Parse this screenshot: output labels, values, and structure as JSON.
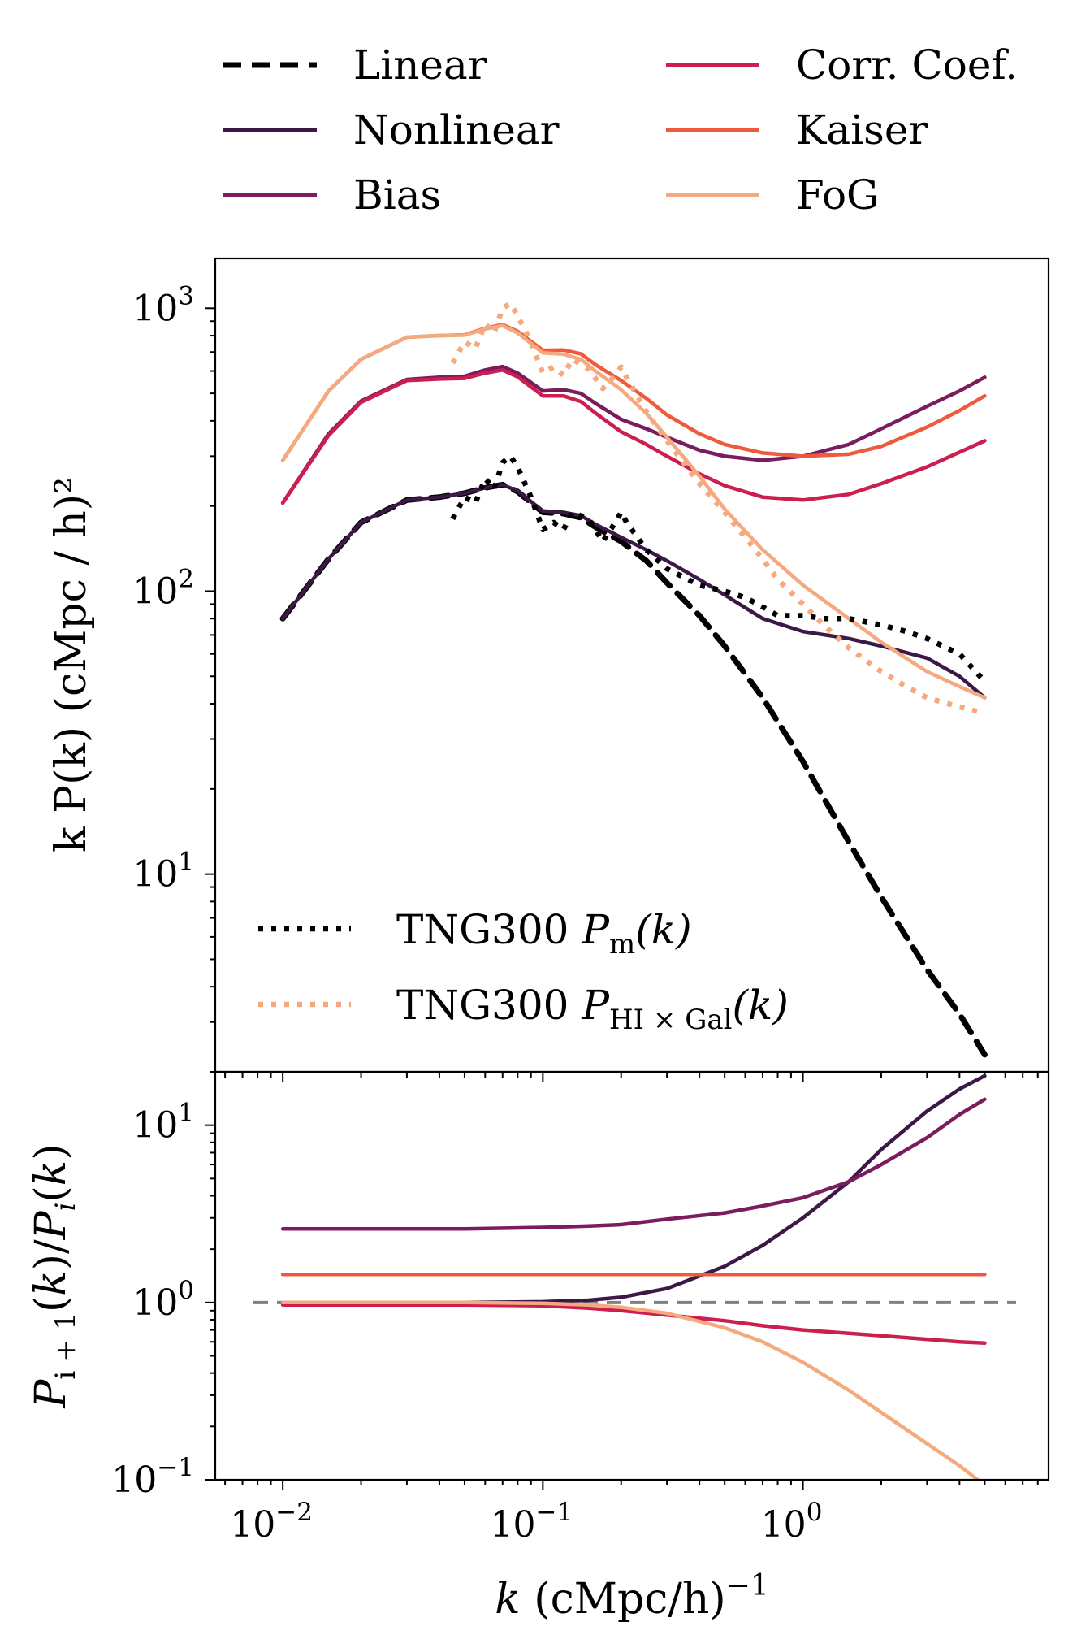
{
  "chart_data": [
    {
      "type": "line",
      "panel": "top",
      "xscale": "log",
      "yscale": "log",
      "xlim": [
        0.0055,
        8.8
      ],
      "ylim": [
        2.0,
        1500
      ],
      "ylabel": "k P(k) (cMpc / h)²",
      "ytick_labels": [
        {
          "base": "10",
          "exp": "1",
          "value": 10
        },
        {
          "base": "10",
          "exp": "2",
          "value": 100
        },
        {
          "base": "10",
          "exp": "3",
          "value": 1000
        }
      ],
      "legend_top": {
        "placement": "above-figure",
        "entries": [
          {
            "key": "linear",
            "label": "Linear"
          },
          {
            "key": "nonlinear",
            "label": "Nonlinear"
          },
          {
            "key": "bias",
            "label": "Bias"
          },
          {
            "key": "corr",
            "label": "Corr. Coef."
          },
          {
            "key": "kaiser",
            "label": "Kaiser"
          },
          {
            "key": "fog",
            "label": "FoG"
          }
        ]
      },
      "legend_sim": {
        "placement": "lower-left",
        "entries": [
          {
            "key": "tng_m",
            "label_main": "TNG300 ",
            "label_sym": "P",
            "label_sub": "m",
            "label_tail": "(k)"
          },
          {
            "key": "tng_hi",
            "label_main": "TNG300 ",
            "label_sym": "P",
            "label_sub": "HI × Gal",
            "label_tail": "(k)"
          }
        ]
      },
      "series": [
        {
          "key": "linear",
          "name": "Linear",
          "color": "#000000",
          "style": "dashed",
          "x": [
            0.01,
            0.015,
            0.02,
            0.03,
            0.04,
            0.05,
            0.06,
            0.07,
            0.08,
            0.1,
            0.12,
            0.14,
            0.16,
            0.2,
            0.25,
            0.3,
            0.4,
            0.5,
            0.7,
            1.0,
            1.5,
            2.0,
            3.0,
            4.0,
            5.0
          ],
          "y": [
            80,
            130,
            175,
            210,
            215,
            222,
            232,
            238,
            225,
            190,
            188,
            182,
            168,
            150,
            128,
            107,
            82,
            64,
            42,
            25,
            13,
            8.3,
            4.6,
            3.2,
            2.3
          ]
        },
        {
          "key": "nonlinear",
          "name": "Nonlinear",
          "color": "#3b1846",
          "style": "solid",
          "x": [
            0.01,
            0.015,
            0.02,
            0.03,
            0.04,
            0.05,
            0.06,
            0.07,
            0.08,
            0.1,
            0.12,
            0.14,
            0.16,
            0.2,
            0.25,
            0.3,
            0.4,
            0.5,
            0.7,
            1.0,
            1.5,
            2.0,
            3.0,
            4.0,
            5.0
          ],
          "y": [
            80,
            130,
            175,
            210,
            215,
            222,
            232,
            238,
            226,
            192,
            190,
            185,
            172,
            155,
            140,
            128,
            110,
            97,
            80,
            72,
            68,
            64,
            58,
            50,
            42
          ]
        },
        {
          "key": "bias",
          "name": "Bias",
          "color": "#7b1c5e",
          "style": "solid",
          "x": [
            0.01,
            0.015,
            0.02,
            0.03,
            0.04,
            0.05,
            0.06,
            0.07,
            0.08,
            0.1,
            0.12,
            0.14,
            0.16,
            0.2,
            0.25,
            0.3,
            0.4,
            0.5,
            0.7,
            1.0,
            1.5,
            2.0,
            3.0,
            4.0,
            5.0
          ],
          "y": [
            205,
            360,
            470,
            560,
            570,
            575,
            605,
            622,
            590,
            510,
            515,
            500,
            460,
            405,
            375,
            350,
            315,
            300,
            290,
            300,
            330,
            375,
            450,
            510,
            570
          ]
        },
        {
          "key": "corr",
          "name": "Corr. Coef.",
          "color": "#cc1f4f",
          "style": "solid",
          "x": [
            0.01,
            0.015,
            0.02,
            0.03,
            0.04,
            0.05,
            0.06,
            0.07,
            0.08,
            0.1,
            0.12,
            0.14,
            0.16,
            0.2,
            0.25,
            0.3,
            0.4,
            0.5,
            0.7,
            1.0,
            1.5,
            2.0,
            3.0,
            4.0,
            5.0
          ],
          "y": [
            205,
            355,
            465,
            555,
            562,
            565,
            590,
            605,
            572,
            490,
            490,
            468,
            425,
            366,
            330,
            300,
            260,
            236,
            215,
            210,
            220,
            240,
            275,
            310,
            340
          ]
        },
        {
          "key": "kaiser",
          "name": "Kaiser",
          "color": "#ee5a3c",
          "style": "solid",
          "x": [
            0.01,
            0.015,
            0.02,
            0.03,
            0.04,
            0.05,
            0.06,
            0.07,
            0.08,
            0.1,
            0.12,
            0.14,
            0.16,
            0.2,
            0.25,
            0.3,
            0.4,
            0.5,
            0.7,
            1.0,
            1.5,
            2.0,
            3.0,
            4.0,
            5.0
          ],
          "y": [
            290,
            510,
            660,
            790,
            800,
            805,
            850,
            875,
            828,
            710,
            712,
            690,
            630,
            555,
            480,
            420,
            360,
            330,
            308,
            300,
            305,
            325,
            380,
            435,
            490
          ]
        },
        {
          "key": "fog",
          "name": "FoG",
          "color": "#f5a97f",
          "style": "solid",
          "x": [
            0.01,
            0.015,
            0.02,
            0.03,
            0.04,
            0.05,
            0.06,
            0.07,
            0.08,
            0.1,
            0.12,
            0.14,
            0.16,
            0.2,
            0.25,
            0.3,
            0.4,
            0.5,
            0.7,
            1.0,
            1.5,
            2.0,
            3.0,
            4.0,
            5.0
          ],
          "y": [
            290,
            510,
            660,
            790,
            800,
            803,
            845,
            868,
            818,
            695,
            688,
            660,
            598,
            515,
            425,
            350,
            255,
            195,
            140,
            105,
            80,
            66,
            52,
            46,
            42
          ]
        },
        {
          "key": "tng_m",
          "name": "TNG300 P_m(k)",
          "color": "#000000",
          "style": "dotted",
          "x": [
            0.045,
            0.05,
            0.055,
            0.06,
            0.065,
            0.07,
            0.075,
            0.08,
            0.09,
            0.1,
            0.11,
            0.12,
            0.13,
            0.15,
            0.17,
            0.19,
            0.2,
            0.21,
            0.25,
            0.3,
            0.4,
            0.5,
            0.6,
            0.7,
            0.8,
            1.0,
            1.2,
            1.5,
            2.0,
            2.5,
            3.0,
            4.0,
            5.0
          ],
          "y": [
            180,
            215,
            205,
            250,
            230,
            285,
            300,
            275,
            215,
            165,
            175,
            165,
            190,
            180,
            150,
            175,
            190,
            175,
            140,
            120,
            105,
            100,
            95,
            88,
            82,
            82,
            80,
            80,
            76,
            72,
            68,
            60,
            48
          ]
        },
        {
          "key": "tng_hi",
          "name": "TNG300 P_HI×Gal(k)",
          "color": "#f5a97f",
          "style": "dotted",
          "x": [
            0.045,
            0.05,
            0.055,
            0.06,
            0.065,
            0.07,
            0.075,
            0.08,
            0.09,
            0.1,
            0.11,
            0.12,
            0.13,
            0.15,
            0.17,
            0.19,
            0.2,
            0.21,
            0.25,
            0.3,
            0.4,
            0.5,
            0.6,
            0.7,
            0.8,
            1.0,
            1.2,
            1.5,
            2.0,
            2.5,
            3.0,
            4.0,
            5.0
          ],
          "y": [
            640,
            760,
            720,
            880,
            820,
            1000,
            1040,
            940,
            760,
            590,
            620,
            580,
            660,
            610,
            520,
            580,
            620,
            570,
            430,
            340,
            240,
            190,
            155,
            130,
            110,
            90,
            76,
            63,
            52,
            46,
            42,
            39,
            37
          ]
        }
      ]
    },
    {
      "type": "line",
      "panel": "bottom",
      "xscale": "log",
      "yscale": "log",
      "xlim": [
        0.0055,
        8.8
      ],
      "ylim": [
        0.1,
        20
      ],
      "xlabel": "k (cMpc/h)⁻¹",
      "ylabel": "P_{i+1}(k)/P_i(k)",
      "xtick_labels": [
        {
          "base": "10",
          "exp": "−2",
          "value": 0.01
        },
        {
          "base": "10",
          "exp": "−1",
          "value": 0.1
        },
        {
          "base": "10",
          "exp": "0",
          "value": 1
        }
      ],
      "ytick_labels": [
        {
          "base": "10",
          "exp": "−1",
          "value": 0.1
        },
        {
          "base": "10",
          "exp": "0",
          "value": 1
        },
        {
          "base": "10",
          "exp": "1",
          "value": 10
        }
      ],
      "reference_line": {
        "y": 1.0,
        "color": "#808080",
        "style": "dashed"
      },
      "series": [
        {
          "key": "nonlinear",
          "color": "#3b1846",
          "x": [
            0.01,
            0.05,
            0.1,
            0.15,
            0.2,
            0.3,
            0.5,
            0.7,
            1.0,
            1.5,
            2.0,
            3.0,
            4.0,
            5.0
          ],
          "y": [
            1.0,
            1.0,
            1.01,
            1.03,
            1.07,
            1.2,
            1.6,
            2.1,
            3.0,
            4.8,
            7.3,
            12,
            16,
            19
          ]
        },
        {
          "key": "bias",
          "color": "#7b1c5e",
          "x": [
            0.01,
            0.05,
            0.1,
            0.15,
            0.2,
            0.3,
            0.5,
            0.7,
            1.0,
            1.5,
            2.0,
            3.0,
            4.0,
            5.0
          ],
          "y": [
            2.6,
            2.6,
            2.65,
            2.7,
            2.75,
            2.95,
            3.2,
            3.5,
            3.9,
            4.8,
            6.0,
            8.5,
            11.5,
            14
          ]
        },
        {
          "key": "corr",
          "color": "#cc1f4f",
          "x": [
            0.01,
            0.05,
            0.1,
            0.15,
            0.2,
            0.3,
            0.5,
            0.7,
            1.0,
            1.5,
            2.0,
            3.0,
            4.0,
            5.0
          ],
          "y": [
            0.97,
            0.97,
            0.96,
            0.93,
            0.9,
            0.85,
            0.79,
            0.74,
            0.7,
            0.67,
            0.65,
            0.62,
            0.6,
            0.59
          ]
        },
        {
          "key": "kaiser",
          "color": "#ee5a3c",
          "x": [
            0.01,
            5.0
          ],
          "y": [
            1.44,
            1.44
          ]
        },
        {
          "key": "fog",
          "color": "#f5a97f",
          "x": [
            0.01,
            0.05,
            0.1,
            0.15,
            0.2,
            0.3,
            0.5,
            0.7,
            1.0,
            1.5,
            2.0,
            3.0,
            4.0,
            4.7
          ],
          "y": [
            1.0,
            1.0,
            0.99,
            0.97,
            0.94,
            0.87,
            0.72,
            0.6,
            0.46,
            0.32,
            0.24,
            0.16,
            0.12,
            0.1
          ]
        }
      ]
    }
  ]
}
